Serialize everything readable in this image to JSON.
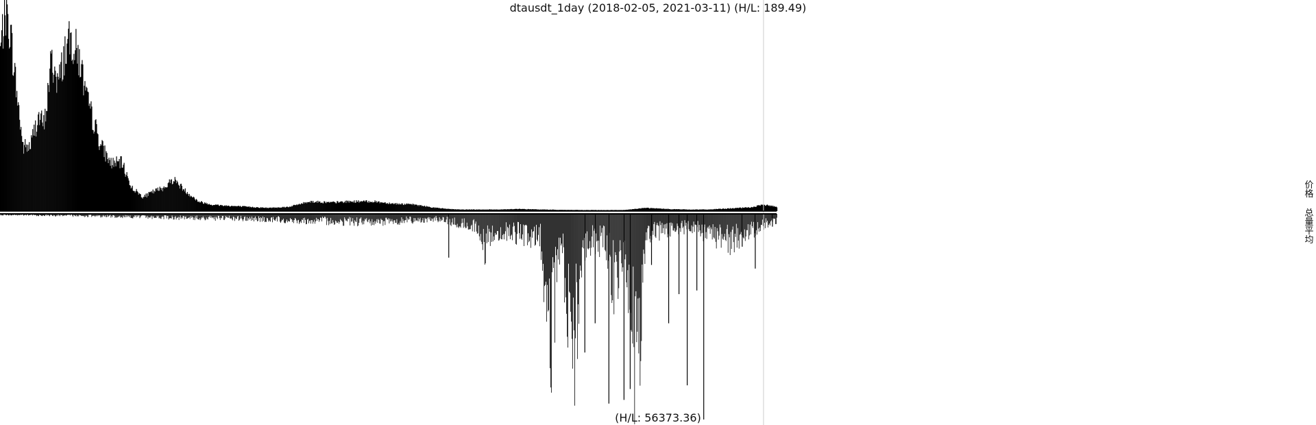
{
  "chart_data": {
    "type": "bar",
    "title": "dtausdt_1day (2018-02-05, 2021-03-11) (H/L: 189.49)",
    "bottom_label": "(H/L: 56373.36)",
    "start_date": "2018-02-05",
    "end_date": "2021-03-11",
    "legend": [
      "价格",
      "总量平均"
    ],
    "legend_position": "right",
    "grid": false,
    "colors": {
      "bars": "#000000",
      "vertical_marker": "#cccccc",
      "baseline": "#000000"
    },
    "price_series": {
      "name": "价格",
      "ylim": [
        0,
        189.49
      ],
      "x": [
        "2018-02-05",
        "2018-02-12",
        "2018-02-19",
        "2018-03-01",
        "2018-03-10",
        "2018-03-20",
        "2018-04-01",
        "2018-04-10",
        "2018-04-20",
        "2018-05-01",
        "2018-05-10",
        "2018-05-20",
        "2018-06-01",
        "2018-06-10",
        "2018-06-20",
        "2018-07-01",
        "2018-07-15",
        "2018-08-01",
        "2018-08-15",
        "2018-09-01",
        "2018-09-15",
        "2018-10-01",
        "2018-10-15",
        "2018-11-01",
        "2018-11-20",
        "2018-12-10",
        "2019-01-01",
        "2019-02-01",
        "2019-03-01",
        "2019-04-01",
        "2019-05-01",
        "2019-06-01",
        "2019-07-01",
        "2019-08-01",
        "2019-09-01",
        "2019-10-01",
        "2019-11-01",
        "2019-12-01",
        "2020-01-01",
        "2020-02-01",
        "2020-03-01",
        "2020-04-01",
        "2020-05-01",
        "2020-06-01",
        "2020-07-01",
        "2020-08-01",
        "2020-09-01",
        "2020-10-01",
        "2020-11-01",
        "2020-12-01",
        "2021-01-01",
        "2021-02-01",
        "2021-02-20",
        "2021-03-11"
      ],
      "values": [
        150,
        189,
        170,
        110,
        60,
        60,
        88,
        80,
        140,
        120,
        150,
        160,
        140,
        105,
        85,
        62,
        45,
        45,
        22,
        13,
        18,
        22,
        30,
        19,
        9,
        6,
        5,
        4,
        3,
        4,
        9,
        8,
        9,
        9,
        7,
        6,
        3,
        1.5,
        1.5,
        1.5,
        2,
        1.5,
        1.2,
        1,
        1,
        1,
        3,
        2,
        1.5,
        1.5,
        2.5,
        3.5,
        6,
        4
      ]
    },
    "volume_series": {
      "name": "总量平均",
      "ylim": [
        0,
        56373.36
      ],
      "x": [
        "2018-02-05",
        "2018-05-01",
        "2018-08-01",
        "2018-11-01",
        "2019-02-01",
        "2019-05-01",
        "2019-08-01",
        "2019-11-01",
        "2020-01-01",
        "2020-01-10",
        "2020-02-01",
        "2020-03-01",
        "2020-04-01",
        "2020-04-15",
        "2020-05-01",
        "2020-05-20",
        "2020-06-01",
        "2020-06-10",
        "2020-07-01",
        "2020-07-20",
        "2020-08-01",
        "2020-08-20",
        "2020-09-01",
        "2020-10-01",
        "2020-11-01",
        "2020-12-01",
        "2021-01-01",
        "2021-02-01",
        "2021-02-20",
        "2021-03-11"
      ],
      "values": [
        300,
        500,
        800,
        1200,
        1500,
        2000,
        2500,
        1500,
        4000,
        10000,
        5000,
        6000,
        7000,
        40000,
        8000,
        46000,
        10000,
        9000,
        8000,
        22000,
        8000,
        56373.36,
        6000,
        5000,
        4000,
        6000,
        8000,
        5000,
        3000,
        2000
      ]
    },
    "spike_events": [
      {
        "x": "2019-11-20",
        "value": 12000
      },
      {
        "x": "2020-06-05",
        "value": 38000
      },
      {
        "x": "2020-06-20",
        "value": 30000
      },
      {
        "x": "2020-07-10",
        "value": 52000
      },
      {
        "x": "2020-08-01",
        "value": 51000
      },
      {
        "x": "2020-08-10",
        "value": 48000
      },
      {
        "x": "2020-09-10",
        "value": 14000
      },
      {
        "x": "2020-10-05",
        "value": 30000
      },
      {
        "x": "2020-10-20",
        "value": 22000
      },
      {
        "x": "2020-11-01",
        "value": 47000
      },
      {
        "x": "2020-11-15",
        "value": 21000
      },
      {
        "x": "2020-11-25",
        "value": 56373.36
      },
      {
        "x": "2021-01-20",
        "value": 9000
      },
      {
        "x": "2021-02-08",
        "value": 15000
      },
      {
        "x": "2021-03-05",
        "value": 3500
      }
    ],
    "vertical_marker_x": "2021-02-20"
  }
}
